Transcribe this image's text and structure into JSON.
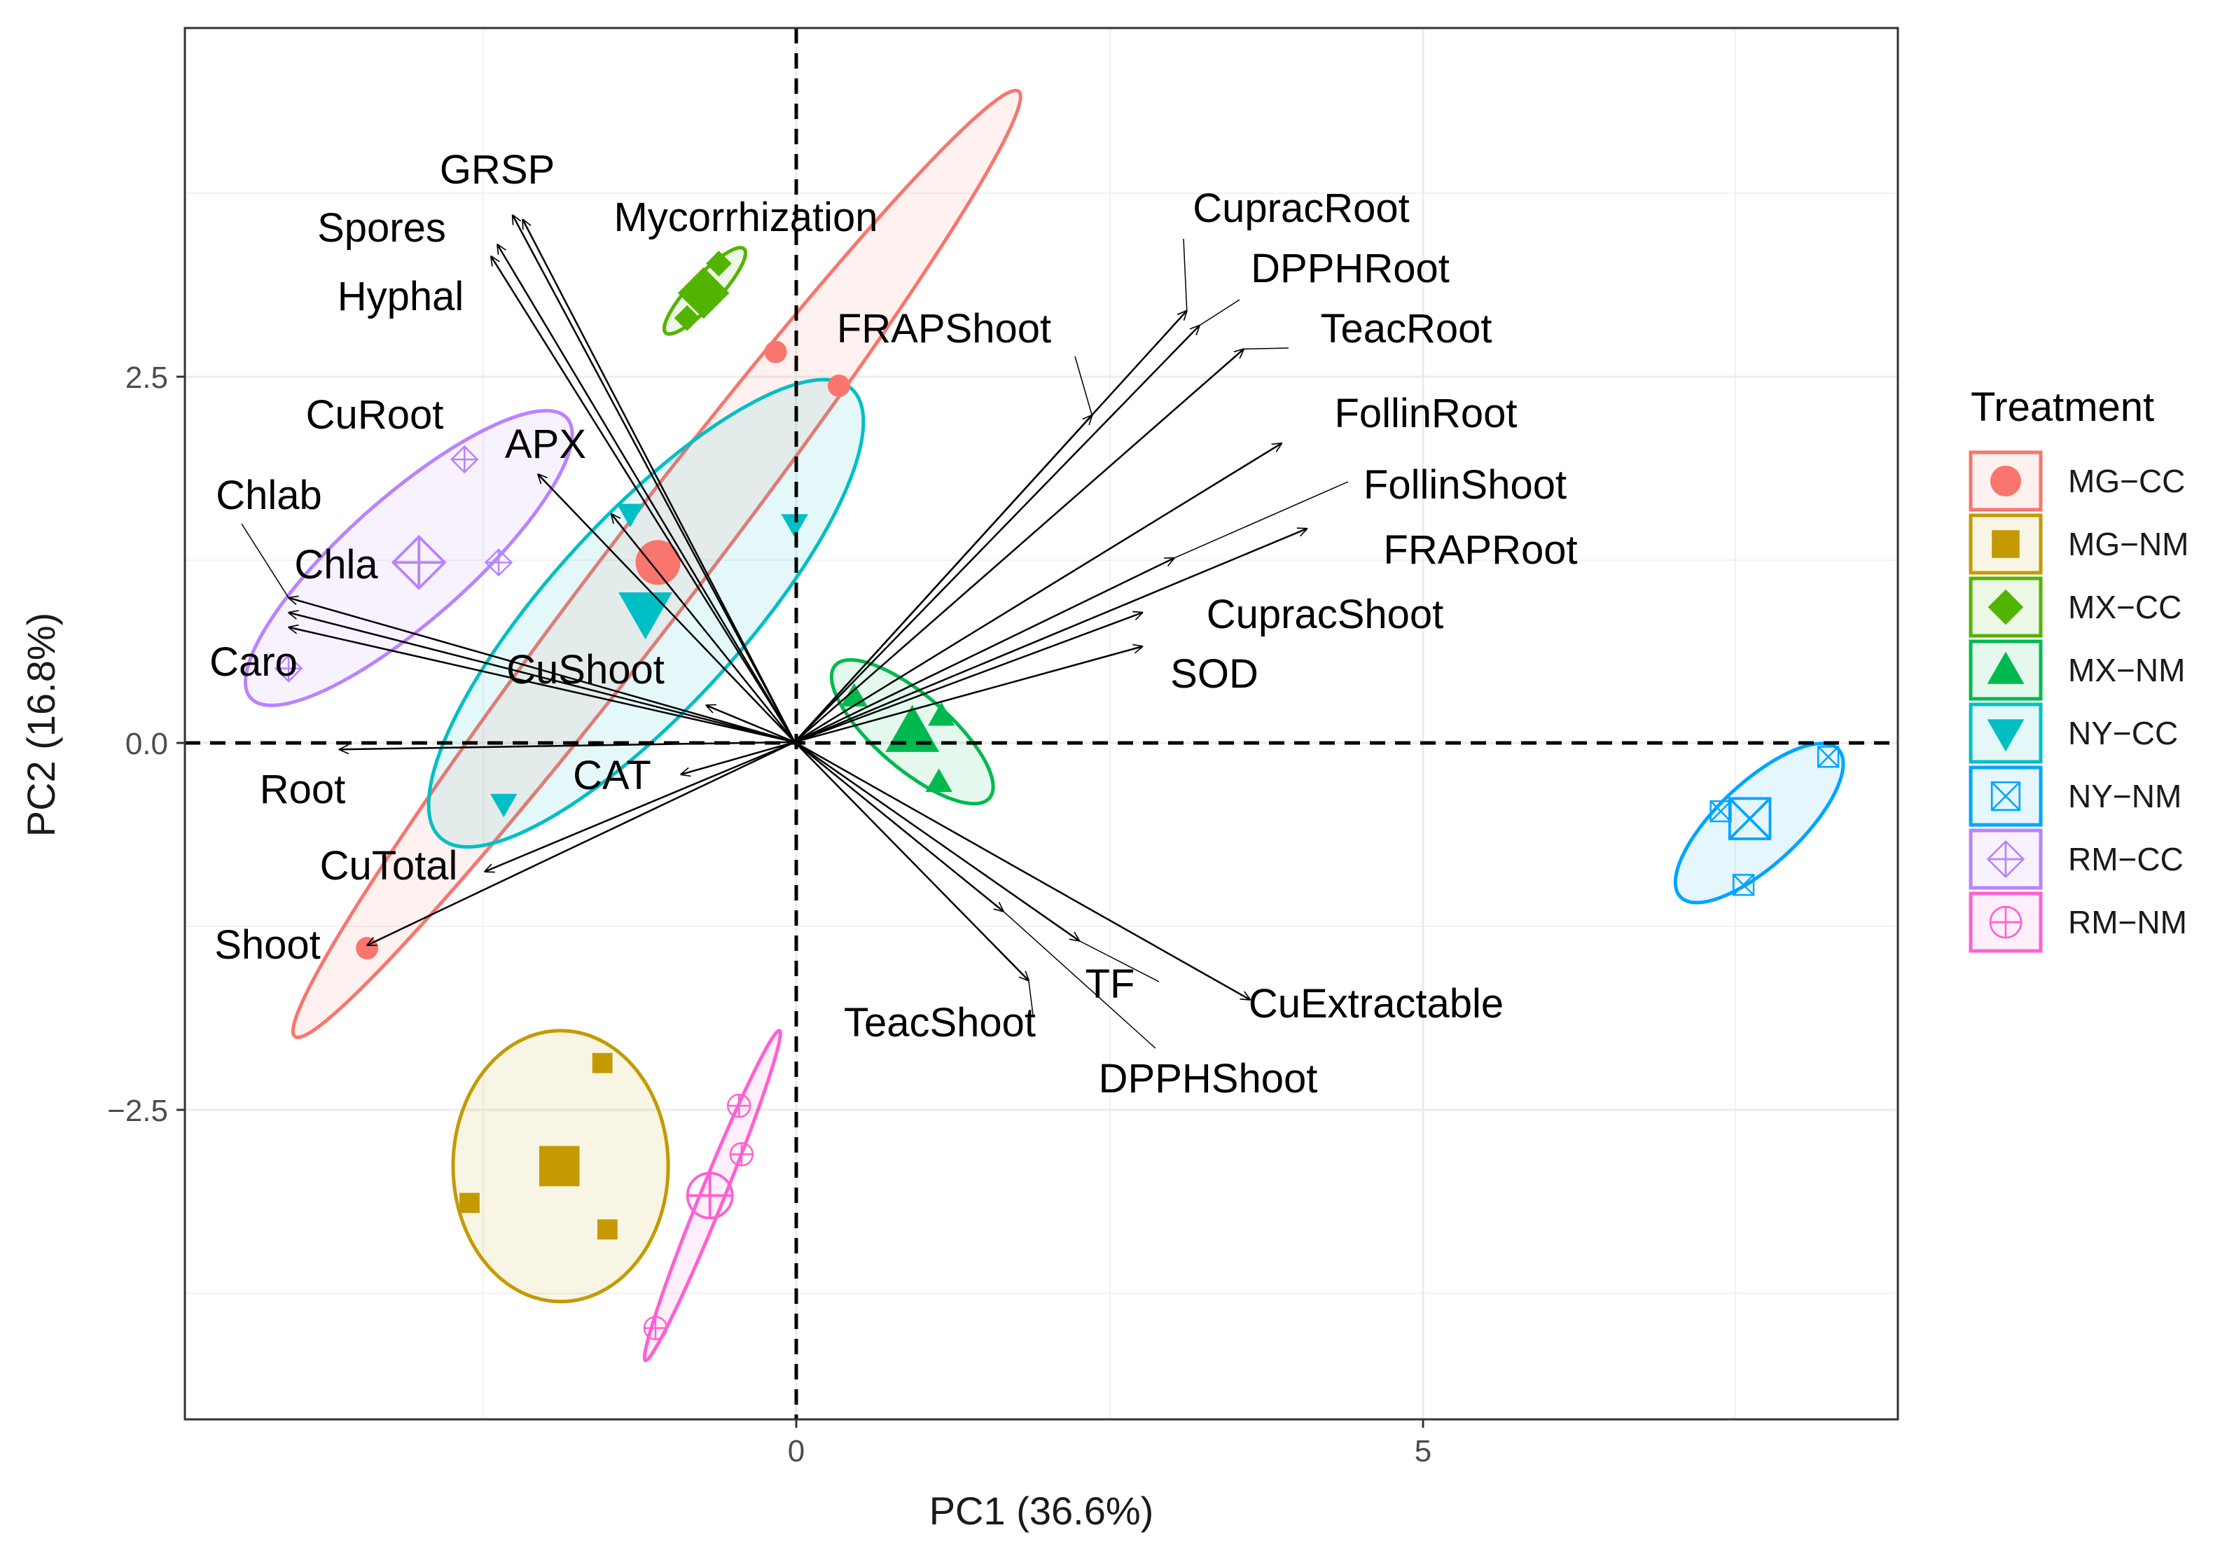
{
  "chart_data": {
    "type": "scatter",
    "subtype": "pca-biplot",
    "xlabel": "PC1 (36.6%)",
    "ylabel": "PC2 (16.8%)",
    "xlim": [
      -4.82,
      8.72
    ],
    "ylim": [
      -4.6,
      4.85
    ],
    "xticks": [
      0,
      5
    ],
    "yticks": [
      -2.5,
      0.0,
      2.5
    ],
    "xtick_labels": [
      "0",
      "5"
    ],
    "ytick_labels": [
      "−2.5",
      "0.0",
      "2.5"
    ],
    "grid": true,
    "reference_lines": {
      "x": 0,
      "y": 0,
      "style": "dashed"
    },
    "legend": {
      "title": "Treatment",
      "position": "right",
      "entries": [
        {
          "label": "MG−CC",
          "group": "MG-CC"
        },
        {
          "label": "MG−NM",
          "group": "MG-NM"
        },
        {
          "label": "MX−CC",
          "group": "MX-CC"
        },
        {
          "label": "MX−NM",
          "group": "MX-NM"
        },
        {
          "label": "NY−CC",
          "group": "NY-CC"
        },
        {
          "label": "NY−NM",
          "group": "NY-NM"
        },
        {
          "label": "RM−CC",
          "group": "RM-CC"
        },
        {
          "label": "RM−NM",
          "group": "RM-NM"
        }
      ]
    },
    "groups": [
      {
        "name": "MG-CC",
        "color": "#F8766D",
        "shape": "circle",
        "centroid": [
          -1.08,
          1.22
        ],
        "points": [
          [
            -0.15,
            2.65
          ],
          [
            0.35,
            2.42
          ],
          [
            -3.38,
            -1.4
          ]
        ],
        "ellipse": {
          "points": [
            [
              1.77,
              4.42
            ],
            [
              -3.95,
              -2.0
            ]
          ],
          "minor": 0.32
        }
      },
      {
        "name": "MG-NM",
        "color": "#C49A00",
        "shape": "square",
        "centroid": [
          -1.86,
          -2.88
        ],
        "points": [
          [
            -1.52,
            -2.18
          ],
          [
            -2.57,
            -3.13
          ],
          [
            -1.48,
            -3.31
          ]
        ],
        "ellipse": {
          "points": [
            [
              -1.0,
              -2.88
            ],
            [
              -2.7,
              -2.88
            ]
          ],
          "minor": 0.92
        }
      },
      {
        "name": "MX-CC",
        "color": "#53B400",
        "shape": "diamond",
        "centroid": [
          -0.72,
          3.05
        ],
        "points": [
          [
            -0.6,
            3.25
          ],
          [
            -0.85,
            2.88
          ],
          [
            -0.7,
            3.1
          ]
        ],
        "ellipse": {
          "points": [
            [
              -0.4,
              3.35
            ],
            [
              -1.02,
              2.78
            ]
          ],
          "minor": 0.1
        }
      },
      {
        "name": "MX-NM",
        "color": "#00B94E",
        "shape": "triangle-up",
        "centroid": [
          0.93,
          0.07
        ],
        "points": [
          [
            0.47,
            0.31
          ],
          [
            1.16,
            0.18
          ],
          [
            1.14,
            -0.27
          ]
        ],
        "ellipse": {
          "points": [
            [
              0.32,
              0.52
            ],
            [
              1.54,
              -0.38
            ]
          ],
          "minor": 0.25
        }
      },
      {
        "name": "NY-CC",
        "color": "#00BFC4",
        "shape": "triangle-down",
        "centroid": [
          -1.18,
          0.88
        ],
        "points": [
          [
            -1.3,
            1.55
          ],
          [
            0.0,
            1.48
          ],
          [
            -2.3,
            -0.42
          ]
        ],
        "ellipse": {
          "points": [
            [
              0.45,
              2.4
            ],
            [
              -2.8,
              -0.65
            ]
          ],
          "minor": 0.65
        }
      },
      {
        "name": "NY-NM",
        "color": "#00A5FF",
        "shape": "square-cross",
        "centroid": [
          7.55,
          -0.52
        ],
        "points": [
          [
            8.17,
            -0.1
          ],
          [
            7.32,
            -0.47
          ],
          [
            7.5,
            -0.97
          ]
        ],
        "ellipse": {
          "points": [
            [
              8.25,
              -0.05
            ],
            [
              7.0,
              -1.05
            ]
          ],
          "minor": 0.28
        }
      },
      {
        "name": "RM-CC",
        "color": "#B983FF",
        "shape": "diamond-plus",
        "centroid": [
          -2.97,
          1.22
        ],
        "points": [
          [
            -2.61,
            1.92
          ],
          [
            -2.34,
            1.22
          ],
          [
            -4.0,
            0.5
          ]
        ],
        "ellipse": {
          "points": [
            [
              -1.8,
              2.2
            ],
            [
              -4.3,
              0.3
            ]
          ],
          "minor": 0.42
        }
      },
      {
        "name": "RM-NM",
        "color": "#FD61D1",
        "shape": "circle-plus",
        "centroid": [
          -0.67,
          -3.08
        ],
        "points": [
          [
            -0.44,
            -2.47
          ],
          [
            -0.42,
            -2.8
          ],
          [
            -1.1,
            -3.98
          ]
        ],
        "ellipse": {
          "points": [
            [
              -0.12,
              -1.96
            ],
            [
              -1.18,
              -4.2
            ]
          ],
          "minor": 0.08
        }
      }
    ],
    "loadings": [
      {
        "name": "GRSP",
        "x": -2.23,
        "y": 3.58
      },
      {
        "name": "Spores",
        "x": -2.35,
        "y": 3.38
      },
      {
        "name": "Hyphal",
        "x": -2.4,
        "y": 3.3
      },
      {
        "name": "Mycorrhization",
        "x": -2.15,
        "y": 3.55
      },
      {
        "name": "CuRoot",
        "x": -2.03,
        "y": 1.82
      },
      {
        "name": "APX",
        "x": -1.45,
        "y": 1.55
      },
      {
        "name": "Chlab",
        "x": -4.0,
        "y": 0.98
      },
      {
        "name": "Chla",
        "x": -4.0,
        "y": 0.88
      },
      {
        "name": "Caro",
        "x": -4.0,
        "y": 0.78
      },
      {
        "name": "CuShoot",
        "x": -0.7,
        "y": 0.25
      },
      {
        "name": "Root",
        "x": -3.6,
        "y": -0.05
      },
      {
        "name": "CAT",
        "x": -0.9,
        "y": -0.22
      },
      {
        "name": "CuTotal",
        "x": -2.45,
        "y": -0.88
      },
      {
        "name": "Shoot",
        "x": -3.38,
        "y": -1.38
      },
      {
        "name": "FRAPShoot",
        "x": 2.35,
        "y": 2.22
      },
      {
        "name": "CupracRoot",
        "x": 3.1,
        "y": 2.93
      },
      {
        "name": "DPPHRoot",
        "x": 3.2,
        "y": 2.83
      },
      {
        "name": "TeacRoot",
        "x": 3.55,
        "y": 2.67
      },
      {
        "name": "FollinRoot",
        "x": 3.85,
        "y": 2.03
      },
      {
        "name": "FollinShoot",
        "x": 3.0,
        "y": 1.25
      },
      {
        "name": "FRAPRoot",
        "x": 4.05,
        "y": 1.45
      },
      {
        "name": "CupracShoot",
        "x": 2.75,
        "y": 0.88
      },
      {
        "name": "SOD",
        "x": 2.75,
        "y": 0.65
      },
      {
        "name": "TeacShoot",
        "x": 1.85,
        "y": -1.62
      },
      {
        "name": "DPPHShoot",
        "x": 1.65,
        "y": -1.15
      },
      {
        "name": "TF",
        "x": 2.25,
        "y": -1.35
      },
      {
        "name": "CuExtractable",
        "x": 3.6,
        "y": -1.75
      }
    ]
  }
}
